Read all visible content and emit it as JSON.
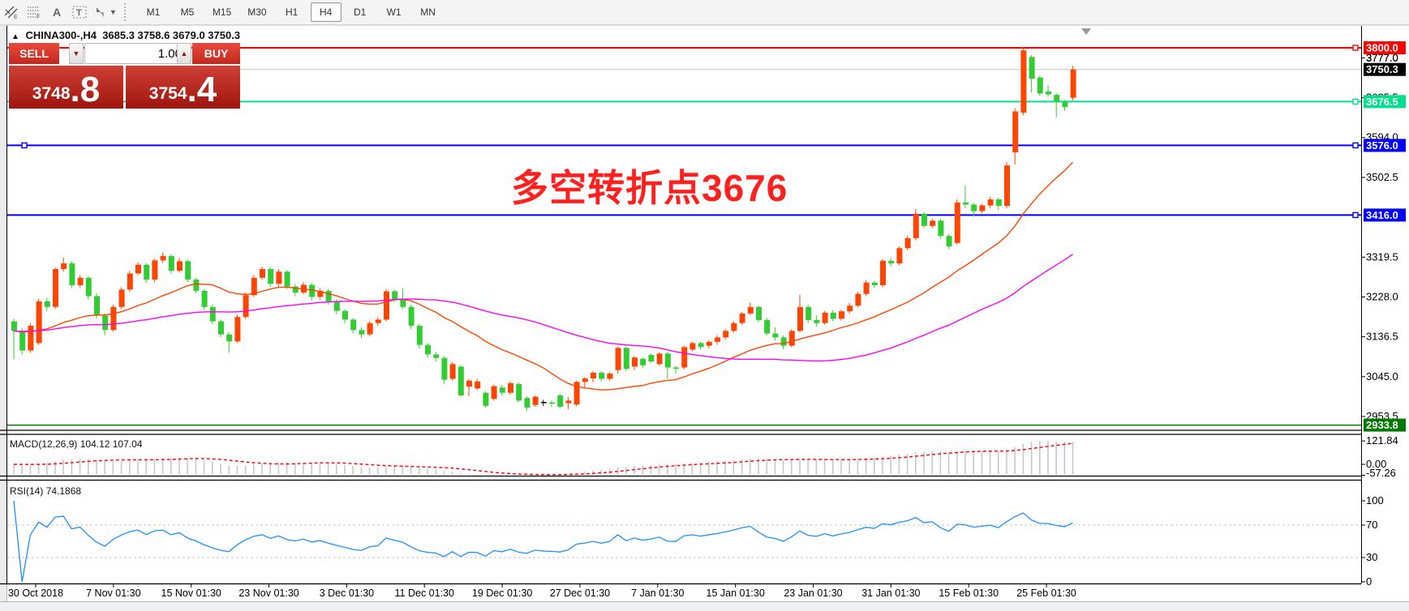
{
  "toolbar": {
    "tools": [
      "equidistant-channel",
      "fibonacci",
      "text",
      "text-label",
      "shapes"
    ],
    "timeframes": [
      "M1",
      "M5",
      "M15",
      "M30",
      "H1",
      "H4",
      "D1",
      "W1",
      "MN"
    ],
    "active_timeframe": "H4"
  },
  "chart_title": {
    "symbol_period": "CHINA300-,H4",
    "ohlc_text": "3685.3 3758.6 3679.0 3750.3"
  },
  "one_click": {
    "sell_label": "SELL",
    "buy_label": "BUY",
    "volume": "1.00",
    "bid_main": "3748",
    "bid_fraction": ".8",
    "ask_main": "3754",
    "ask_fraction": ".4"
  },
  "annotation": {
    "text": "多空转折点3676",
    "color": "#FF2020"
  },
  "chart_data": {
    "type": "candlestick",
    "symbol": "CHINA300-",
    "period": "H4",
    "last_ohlc": {
      "open": 3685.3,
      "high": 3758.6,
      "low": 3679.0,
      "close": 3750.3
    },
    "bull_color": "#FF4500",
    "bear_color": "#33CC33",
    "price_axis_ticks": [
      3777.0,
      3685.5,
      3594.0,
      3502.5,
      3319.5,
      3228.0,
      3136.5,
      3045.0,
      2953.5
    ],
    "price_badges": [
      {
        "value": "3800.0",
        "price": 3800.0,
        "bg": "#FF0000",
        "fg": "#FFFFFF"
      },
      {
        "value": "3777.0",
        "price": 3777.0,
        "bg": "",
        "fg": "#000000"
      },
      {
        "value": "3750.3",
        "price": 3750.3,
        "bg": "#000000",
        "fg": "#FFFFFF"
      },
      {
        "value": "3676.5",
        "price": 3676.5,
        "bg": "#00DF8B",
        "fg": "#FFFFFF"
      },
      {
        "value": "3576.0",
        "price": 3576.0,
        "bg": "#0000FF",
        "fg": "#FFFFFF"
      },
      {
        "value": "3416.0",
        "price": 3416.0,
        "bg": "#0000FF",
        "fg": "#FFFFFF"
      },
      {
        "value": "2933.8",
        "price": 2933.8,
        "bg": "#007A00",
        "fg": "#FFFFFF"
      }
    ],
    "hlines": [
      {
        "price": 3800.0,
        "color": "#FF0000",
        "width": 2,
        "marker": "right"
      },
      {
        "price": 3676.5,
        "color": "#00DF8B",
        "width": 2,
        "marker": "right"
      },
      {
        "price": 3576.0,
        "color": "#0000FF",
        "width": 2,
        "marker": "both"
      },
      {
        "price": 3416.0,
        "color": "#0000FF",
        "width": 2,
        "marker": "right"
      },
      {
        "price": 2933.8,
        "color": "#007A00",
        "width": 1.5,
        "marker": "none"
      },
      {
        "price": 3750.3,
        "color": "#C0C0C0",
        "width": 1,
        "marker": "none"
      }
    ],
    "x_axis_labels": [
      "30 Oct 2018",
      "7 Nov 01:30",
      "15 Nov 01:30",
      "23 Nov 01:30",
      "3 Dec 01:30",
      "11 Dec 01:30",
      "19 Dec 01:30",
      "27 Dec 01:30",
      "7 Jan 01:30",
      "15 Jan 01:30",
      "23 Jan 01:30",
      "31 Jan 01:30",
      "15 Feb 01:30",
      "25 Feb 01:30"
    ],
    "ma_fast": {
      "period": 20,
      "color": "#FF4500"
    },
    "ma_slow": {
      "period": 50,
      "color": "#FF00FF"
    },
    "macd": {
      "label": "MACD(12,26,9)",
      "values": "104.12 107.04",
      "fast": 12,
      "slow": 26,
      "signal": 9,
      "axis_ticks": [
        "121.84",
        "0.00",
        "-57.26"
      ],
      "bar_color": "#C8C8C8",
      "signal_color": "#FF0000"
    },
    "rsi": {
      "label": "RSI(14)",
      "value": "74.1868",
      "period": 14,
      "axis_ticks": [
        "100",
        "70",
        "30",
        "0"
      ],
      "levels": [
        70,
        30
      ],
      "color": "#1E90FF"
    },
    "candles": [
      [
        3172,
        3178,
        3085,
        3150
      ],
      [
        3150,
        3156,
        3096,
        3105
      ],
      [
        3105,
        3168,
        3100,
        3162
      ],
      [
        3122,
        3224,
        3118,
        3218
      ],
      [
        3218,
        3226,
        3196,
        3205
      ],
      [
        3205,
        3296,
        3200,
        3292
      ],
      [
        3292,
        3318,
        3286,
        3305
      ],
      [
        3305,
        3310,
        3248,
        3255
      ],
      [
        3255,
        3278,
        3250,
        3272
      ],
      [
        3272,
        3276,
        3222,
        3230
      ],
      [
        3230,
        3236,
        3178,
        3185
      ],
      [
        3185,
        3190,
        3140,
        3152
      ],
      [
        3152,
        3210,
        3148,
        3205
      ],
      [
        3205,
        3250,
        3200,
        3245
      ],
      [
        3245,
        3288,
        3240,
        3282
      ],
      [
        3282,
        3308,
        3278,
        3302
      ],
      [
        3302,
        3306,
        3260,
        3268
      ],
      [
        3268,
        3316,
        3262,
        3312
      ],
      [
        3312,
        3330,
        3306,
        3322
      ],
      [
        3322,
        3326,
        3282,
        3288
      ],
      [
        3288,
        3318,
        3284,
        3310
      ],
      [
        3310,
        3314,
        3262,
        3268
      ],
      [
        3268,
        3272,
        3236,
        3242
      ],
      [
        3242,
        3246,
        3198,
        3205
      ],
      [
        3205,
        3210,
        3165,
        3172
      ],
      [
        3172,
        3176,
        3136,
        3142
      ],
      [
        3142,
        3148,
        3100,
        3126
      ],
      [
        3126,
        3188,
        3122,
        3182
      ],
      [
        3182,
        3238,
        3178,
        3232
      ],
      [
        3232,
        3278,
        3228,
        3272
      ],
      [
        3272,
        3298,
        3268,
        3292
      ],
      [
        3292,
        3296,
        3250,
        3258
      ],
      [
        3258,
        3292,
        3252,
        3286
      ],
      [
        3286,
        3290,
        3246,
        3252
      ],
      [
        3252,
        3258,
        3230,
        3238
      ],
      [
        3238,
        3262,
        3234,
        3256
      ],
      [
        3256,
        3260,
        3220,
        3228
      ],
      [
        3228,
        3248,
        3222,
        3242
      ],
      [
        3242,
        3246,
        3210,
        3218
      ],
      [
        3218,
        3222,
        3188,
        3196
      ],
      [
        3196,
        3200,
        3168,
        3176
      ],
      [
        3176,
        3180,
        3144,
        3152
      ],
      [
        3152,
        3158,
        3134,
        3142
      ],
      [
        3142,
        3172,
        3138,
        3168
      ],
      [
        3168,
        3182,
        3162,
        3176
      ],
      [
        3176,
        3246,
        3172,
        3241
      ],
      [
        3241,
        3245,
        3216,
        3222
      ],
      [
        3222,
        3248,
        3200,
        3205
      ],
      [
        3205,
        3210,
        3155,
        3162
      ],
      [
        3162,
        3166,
        3110,
        3118
      ],
      [
        3118,
        3122,
        3088,
        3096
      ],
      [
        3096,
        3102,
        3080,
        3088
      ],
      [
        3088,
        3092,
        3028,
        3038
      ],
      [
        3040,
        3078,
        3036,
        3074
      ],
      [
        3068,
        3072,
        2998,
        3002
      ],
      [
        3022,
        3040,
        3000,
        3036
      ],
      [
        3018,
        3040,
        3014,
        3034
      ],
      [
        3008,
        3012,
        2974,
        2978
      ],
      [
        2994,
        3026,
        2990,
        3023
      ],
      [
        3020,
        3026,
        3002,
        3008
      ],
      [
        3008,
        3034,
        3004,
        3030
      ],
      [
        3028,
        3032,
        2986,
        2990
      ],
      [
        2996,
        3000,
        2966,
        2974
      ],
      [
        2980,
        3002,
        2976,
        2999
      ],
      [
        2987,
        2992,
        2978,
        2987
      ],
      [
        2986,
        2990,
        2976,
        2984
      ],
      [
        3002,
        3006,
        2972,
        2976
      ],
      [
        2984,
        2998,
        2970,
        2990
      ],
      [
        2981,
        3036,
        2977,
        3033
      ],
      [
        3033,
        3044,
        3018,
        3041
      ],
      [
        3041,
        3058,
        3032,
        3054
      ],
      [
        3054,
        3058,
        3034,
        3040
      ],
      [
        3040,
        3056,
        3036,
        3052
      ],
      [
        3060,
        3114,
        3052,
        3111
      ],
      [
        3111,
        3114,
        3058,
        3063
      ],
      [
        3068,
        3092,
        3060,
        3089
      ],
      [
        3086,
        3090,
        3064,
        3071
      ],
      [
        3095,
        3099,
        3076,
        3080
      ],
      [
        3074,
        3101,
        3070,
        3098
      ],
      [
        3098,
        3102,
        3040,
        3066
      ],
      [
        3066,
        3070,
        3052,
        3064
      ],
      [
        3066,
        3116,
        3062,
        3113
      ],
      [
        3107,
        3125,
        3103,
        3122
      ],
      [
        3122,
        3126,
        3108,
        3113
      ],
      [
        3116,
        3128,
        3110,
        3125
      ],
      [
        3125,
        3140,
        3118,
        3135
      ],
      [
        3135,
        3154,
        3130,
        3150
      ],
      [
        3150,
        3172,
        3146,
        3168
      ],
      [
        3168,
        3194,
        3164,
        3190
      ],
      [
        3190,
        3215,
        3186,
        3205
      ],
      [
        3205,
        3208,
        3170,
        3175
      ],
      [
        3175,
        3180,
        3140,
        3144
      ],
      [
        3144,
        3158,
        3128,
        3135
      ],
      [
        3135,
        3140,
        3108,
        3116
      ],
      [
        3116,
        3154,
        3112,
        3150
      ],
      [
        3150,
        3233,
        3146,
        3205
      ],
      [
        3205,
        3210,
        3168,
        3175
      ],
      [
        3175,
        3186,
        3160,
        3168
      ],
      [
        3168,
        3196,
        3164,
        3192
      ],
      [
        3192,
        3198,
        3172,
        3178
      ],
      [
        3178,
        3199,
        3174,
        3195
      ],
      [
        3195,
        3214,
        3190,
        3208
      ],
      [
        3208,
        3240,
        3204,
        3235
      ],
      [
        3235,
        3266,
        3230,
        3261
      ],
      [
        3261,
        3265,
        3248,
        3255
      ],
      [
        3255,
        3315,
        3250,
        3311
      ],
      [
        3311,
        3318,
        3298,
        3305
      ],
      [
        3305,
        3344,
        3300,
        3340
      ],
      [
        3340,
        3368,
        3336,
        3363
      ],
      [
        3363,
        3430,
        3358,
        3419
      ],
      [
        3419,
        3423,
        3386,
        3391
      ],
      [
        3391,
        3408,
        3386,
        3403
      ],
      [
        3403,
        3407,
        3362,
        3368
      ],
      [
        3368,
        3372,
        3338,
        3344
      ],
      [
        3352,
        3452,
        3348,
        3445
      ],
      [
        3445,
        3484,
        3432,
        3440
      ],
      [
        3440,
        3444,
        3412,
        3425
      ],
      [
        3425,
        3442,
        3420,
        3438
      ],
      [
        3438,
        3458,
        3432,
        3452
      ],
      [
        3452,
        3456,
        3428,
        3437
      ],
      [
        3437,
        3538,
        3431,
        3530
      ],
      [
        3560,
        3661,
        3532,
        3654
      ],
      [
        3651,
        3801,
        3645,
        3794
      ],
      [
        3779,
        3783,
        3697,
        3729
      ],
      [
        3732,
        3736,
        3690,
        3695
      ],
      [
        3700,
        3714,
        3688,
        3693
      ],
      [
        3692,
        3696,
        3640,
        3676
      ],
      [
        3676,
        3680,
        3655,
        3664
      ],
      [
        3685.3,
        3758.6,
        3679.0,
        3750.3
      ]
    ]
  }
}
